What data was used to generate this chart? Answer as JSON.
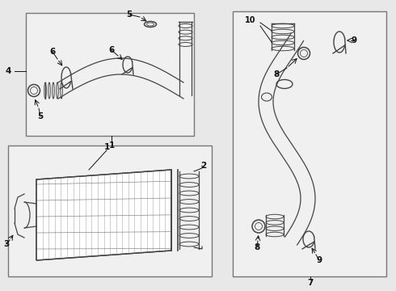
{
  "bg_color": "#e8e8e8",
  "box_color": "#f0f0f0",
  "line_color": "#444444",
  "border_color": "#777777",
  "label_color": "#111111",
  "fig_w": 4.9,
  "fig_h": 3.6,
  "dpi": 100
}
